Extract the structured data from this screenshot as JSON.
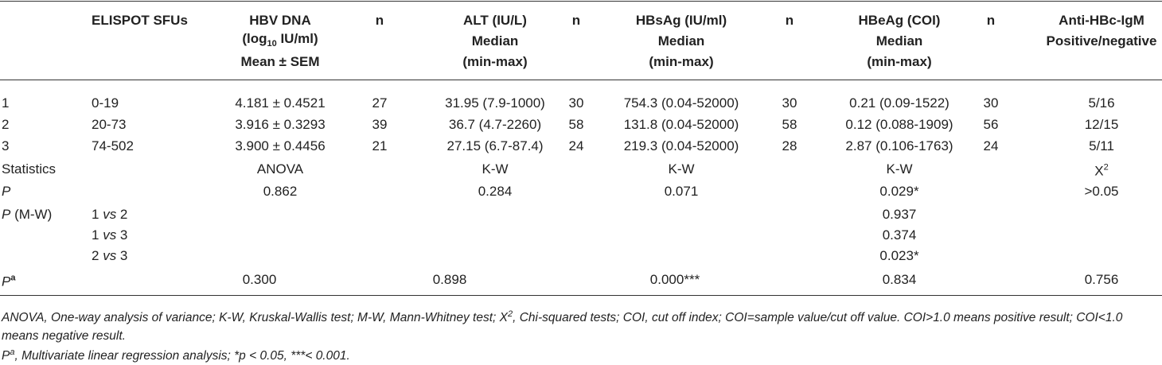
{
  "header": {
    "elispot": "ELISPOT SFUs",
    "hbv_dna": {
      "line1": "HBV DNA",
      "line2_pre": "(log",
      "line2_sub": "10",
      "line2_post": " IU/ml)",
      "line3": "Mean ± SEM"
    },
    "n_labels": [
      "n",
      "n",
      "n",
      "n"
    ],
    "alt": [
      "ALT (IU/L)",
      "Median",
      "(min-max)"
    ],
    "hbsag": [
      "HBsAg (IU/ml)",
      "Median",
      "(min-max)"
    ],
    "hbeag": [
      "HBeAg (COI)",
      "Median",
      "(min-max)"
    ],
    "anti_hbc": [
      "Anti-HBc-IgM",
      "Positive/negative"
    ]
  },
  "rows": [
    [
      "1",
      "0-19",
      "4.181 ± 0.4521",
      "27",
      "31.95 (7.9-1000)",
      "30",
      "754.3 (0.04-52000)",
      "30",
      "0.21 (0.09-1522)",
      "30",
      "5/16"
    ],
    [
      "2",
      "20-73",
      "3.916 ± 0.3293",
      "39",
      "36.7 (4.7-2260)",
      "58",
      "131.8 (0.04-52000)",
      "58",
      "0.12 (0.088-1909)",
      "56",
      "12/15"
    ],
    [
      "3",
      "74-502",
      "3.900 ± 0.4456",
      "21",
      "27.15 (6.7-87.4)",
      "24",
      "219.3 (0.04-52000)",
      "28",
      "2.87 (0.106-1763)",
      "24",
      "5/11"
    ]
  ],
  "statistics": {
    "label": "Statistics",
    "hbv": "ANOVA",
    "alt": "K-W",
    "hbsag": "K-W",
    "hbeag": "K-W",
    "anti_base": "X",
    "anti_sup": "2"
  },
  "p_row": {
    "label": "P",
    "hbv": "0.862",
    "alt": "0.284",
    "hbsag": "0.071",
    "hbeag": "0.029*",
    "anti": ">0.05"
  },
  "mw": {
    "label_italic": "P",
    "label_rest": " (M-W)",
    "comparisons": [
      {
        "a": "1 ",
        "vs": "vs",
        "b": " 2",
        "value": "0.937"
      },
      {
        "a": "1 ",
        "vs": "vs",
        "b": " 3",
        "value": "0.374"
      },
      {
        "a": "2 ",
        "vs": "vs",
        "b": " 3",
        "value": "0.023*"
      }
    ]
  },
  "pa_row": {
    "label": "P",
    "label_sup": "a",
    "hbv": "0.300",
    "alt": "0.898",
    "hbsag": "0.000***",
    "hbeag": "0.834",
    "anti": "0.756"
  },
  "footnotes": {
    "line1_pre": "ANOVA, One-way analysis of variance; K-W, Kruskal-Wallis test; M-W, Mann-Whitney test; ",
    "line1_x": "X",
    "line1_sup": "2",
    "line1_post": ", Chi-squared tests; COI, cut off index; COI=sample value/cut off value. COI>1.0 means positive result; COI<1.0 means negative result.",
    "line2_p": "P",
    "line2_sup": "a",
    "line2_post": ", Multivariate linear regression analysis; *p < 0.05, ***< 0.001."
  }
}
